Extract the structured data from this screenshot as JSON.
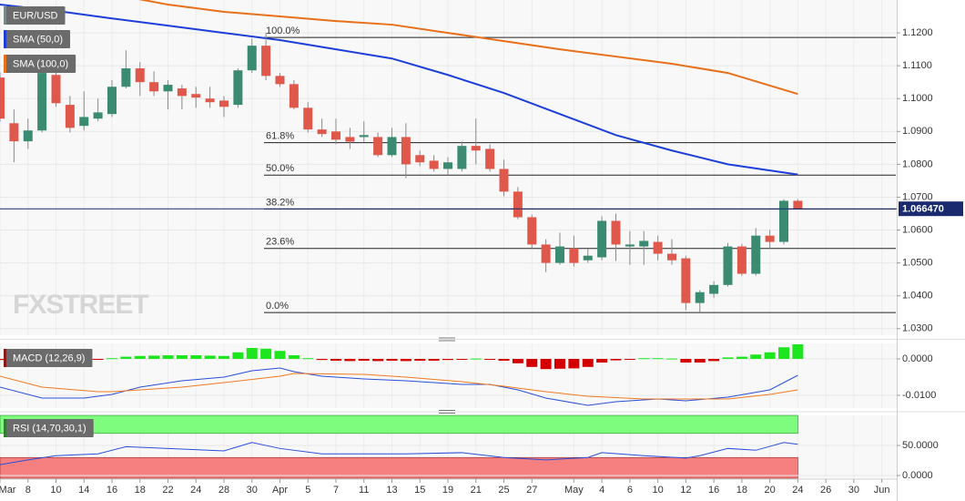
{
  "chart_data": [
    {
      "type": "candlestick",
      "name": "EUR/USD",
      "name_color": "#7a8a8a",
      "x": [
        0,
        1,
        2,
        3,
        4,
        5,
        6,
        7,
        8,
        9,
        10,
        11,
        12,
        13,
        14,
        15,
        16,
        17,
        18,
        19,
        20,
        21,
        22,
        23,
        24,
        25,
        26,
        27,
        28,
        29,
        30,
        31,
        32,
        33,
        34,
        35,
        36,
        37,
        38,
        39,
        40,
        41,
        42,
        43,
        44,
        45,
        46,
        47,
        48,
        49,
        50,
        51,
        52,
        53,
        54,
        55,
        56,
        57
      ],
      "open": [
        1.1064,
        1.0925,
        1.087,
        1.0903,
        1.1072,
        1.0981,
        1.0917,
        1.0939,
        1.0953,
        1.1036,
        1.1092,
        1.105,
        1.1022,
        1.1031,
        1.1014,
        1.1,
        1.0994,
        1.0981,
        1.1086,
        1.1161,
        1.1069,
        1.1044,
        1.0972,
        1.0906,
        1.09,
        1.0883,
        1.0883,
        1.0883,
        1.0828,
        1.0883,
        1.0828,
        1.0811,
        1.0786,
        1.0786,
        1.0856,
        1.0847,
        1.0786,
        1.0717,
        1.0639,
        1.0556,
        1.05,
        1.0544,
        1.0508,
        1.0517,
        1.0628,
        1.055,
        1.055,
        1.0564,
        1.0528,
        1.0514,
        1.0378,
        1.0406,
        1.0433,
        1.055,
        1.0467,
        1.0583,
        1.0564,
        1.0689
      ],
      "high": [
        1.108,
        1.0967,
        1.0939,
        1.1092,
        1.11,
        1.1008,
        1.1022,
        1.1,
        1.1056,
        1.1147,
        1.1111,
        1.1083,
        1.1056,
        1.1042,
        1.1036,
        1.1036,
        1.1008,
        1.1092,
        1.1183,
        1.12,
        1.1078,
        1.1056,
        1.0989,
        1.0939,
        1.0939,
        1.0911,
        1.0931,
        1.0897,
        1.0911,
        1.0925,
        1.0842,
        1.0828,
        1.0822,
        1.0869,
        1.0939,
        1.0861,
        1.0814,
        1.0731,
        1.0647,
        1.0572,
        1.0592,
        1.0583,
        1.0542,
        1.0642,
        1.065,
        1.0597,
        1.0597,
        1.0583,
        1.0572,
        1.0522,
        1.0417,
        1.0444,
        1.0561,
        1.0558,
        1.0606,
        1.06,
        1.0694,
        1.0694
      ],
      "low": [
        1.093,
        1.0806,
        1.0847,
        1.0897,
        1.0975,
        1.0897,
        1.0903,
        1.0931,
        1.0944,
        1.1031,
        1.1008,
        1.1008,
        1.0967,
        1.0967,
        1.0972,
        1.0972,
        1.0944,
        1.0972,
        1.1078,
        1.1056,
        1.1036,
        1.0967,
        1.0897,
        1.0883,
        1.0861,
        1.0847,
        1.0869,
        1.0822,
        1.0822,
        1.0758,
        1.0794,
        1.0778,
        1.0767,
        1.0778,
        1.08,
        1.0778,
        1.0703,
        1.0633,
        1.0544,
        1.0472,
        1.0494,
        1.0489,
        1.05,
        1.0508,
        1.0506,
        1.0494,
        1.0494,
        1.0508,
        1.0494,
        1.0356,
        1.035,
        1.0394,
        1.0428,
        1.0461,
        1.0461,
        1.0544,
        1.0556,
        1.0664
      ],
      "close": [
        1.0939,
        1.087,
        1.0903,
        1.1078,
        1.0986,
        1.0911,
        1.0944,
        1.0958,
        1.1036,
        1.1092,
        1.105,
        1.1022,
        1.1042,
        1.1008,
        1.1003,
        1.0989,
        1.0975,
        1.1086,
        1.1161,
        1.1069,
        1.1044,
        1.0972,
        1.0906,
        1.0892,
        1.0875,
        1.0869,
        1.0889,
        1.0828,
        1.0883,
        1.08,
        1.0806,
        1.0786,
        1.0806,
        1.0856,
        1.0842,
        1.0786,
        1.0717,
        1.0639,
        1.0556,
        1.05,
        1.055,
        1.05,
        1.0522,
        1.0628,
        1.0556,
        1.0556,
        1.0567,
        1.0528,
        1.0508,
        1.0378,
        1.0411,
        1.0433,
        1.055,
        1.0467,
        1.0583,
        1.0564,
        1.0689,
        1.0665
      ],
      "up_color": "#3b8a72",
      "down_color": "#e0574c",
      "series": [
        {
          "name": "SMA (50,0)",
          "color": "#1d3fd8",
          "x": [
            0,
            4,
            8,
            12,
            16,
            20,
            24,
            28,
            32,
            36,
            40,
            44,
            48,
            52,
            57
          ],
          "values": [
            1.1286,
            1.1267,
            1.1244,
            1.1222,
            1.12,
            1.1178,
            1.115,
            1.1122,
            1.1072,
            1.1017,
            1.0953,
            1.0889,
            1.0842,
            1.08,
            1.0769
          ]
        },
        {
          "name": "SMA (100,0)",
          "color": "#e8701a",
          "x": [
            9,
            12,
            16,
            20,
            24,
            28,
            32,
            36,
            40,
            44,
            48,
            52,
            57
          ],
          "values": [
            1.131,
            1.1286,
            1.1264,
            1.125,
            1.1236,
            1.1225,
            1.12,
            1.1175,
            1.115,
            1.1128,
            1.1106,
            1.1078,
            1.1014
          ]
        }
      ],
      "fib_levels": {
        "labels": [
          "100.0%",
          "61.8%",
          "50.0%",
          "38.2%",
          "23.6%",
          "0.0%"
        ],
        "values": [
          1.1186,
          1.0866,
          1.0767,
          1.0664,
          1.0544,
          1.0349
        ]
      },
      "price_line": {
        "value": 1.06647,
        "label": "1.066470",
        "color": "#1b2a6e"
      },
      "watermark": "FXSTREET",
      "xlim": [
        0,
        64
      ],
      "ylim": [
        1.028,
        1.13
      ],
      "yticks": [
        {
          "value": 1.12,
          "label": "1.1200"
        },
        {
          "value": 1.11,
          "label": "1.1100"
        },
        {
          "value": 1.1,
          "label": "1.1000"
        },
        {
          "value": 1.09,
          "label": "1.0900"
        },
        {
          "value": 1.08,
          "label": "1.0800"
        },
        {
          "value": 1.07,
          "label": "1.0700"
        },
        {
          "value": 1.06,
          "label": "1.0600"
        },
        {
          "value": 1.05,
          "label": "1.0500"
        },
        {
          "value": 1.04,
          "label": "1.0400"
        },
        {
          "value": 1.03,
          "label": "1.0300"
        }
      ],
      "grid": true
    },
    {
      "type": "combo",
      "name": "MACD (12,26,9)",
      "name_color": "#8b1a1a",
      "x": [
        0,
        1,
        2,
        3,
        4,
        5,
        6,
        7,
        8,
        9,
        10,
        11,
        12,
        13,
        14,
        15,
        16,
        17,
        18,
        19,
        20,
        21,
        22,
        23,
        24,
        25,
        26,
        27,
        28,
        29,
        30,
        31,
        32,
        33,
        34,
        35,
        36,
        37,
        38,
        39,
        40,
        41,
        42,
        43,
        44,
        45,
        46,
        47,
        48,
        49,
        50,
        51,
        52,
        53,
        54,
        55,
        56,
        57
      ],
      "histogram": [
        -0.0003,
        -0.0004,
        -0.0004,
        -0.0003,
        -0.0002,
        -0.0002,
        -0.0003,
        -0.0002,
        0.0002,
        0.0006,
        0.0008,
        0.0009,
        0.001,
        0.001,
        0.001,
        0.0009,
        0.0008,
        0.0018,
        0.003,
        0.0028,
        0.0022,
        0.001,
        0.0002,
        -0.0003,
        -0.0005,
        -0.0006,
        -0.0005,
        -0.0006,
        -0.0005,
        -0.0006,
        -0.0005,
        -0.0005,
        -0.0003,
        -0.0001,
        0.0001,
        -0.0002,
        -0.0005,
        -0.0012,
        -0.0022,
        -0.0028,
        -0.0027,
        -0.0026,
        -0.0022,
        -0.001,
        -0.0004,
        -0.0001,
        0.0002,
        0.0002,
        0.0001,
        -0.001,
        -0.001,
        -0.0006,
        0.0004,
        0.0006,
        0.0012,
        0.0018,
        0.0032,
        0.004
      ],
      "up_color": "#1ee61e",
      "down_color": "#d40000",
      "lines": [
        {
          "color": "#2a4fd8",
          "x": [
            0,
            3,
            6,
            8,
            10,
            13,
            16,
            18,
            20,
            21,
            23,
            26,
            29,
            33,
            35,
            37,
            39,
            42,
            44,
            47,
            49,
            52,
            55,
            57
          ],
          "values": [
            -0.00775,
            -0.01075,
            -0.01075,
            -0.00975,
            -0.00775,
            -0.006,
            -0.005,
            -0.00325,
            -0.0025,
            -0.0035,
            -0.00475,
            -0.0055,
            -0.006,
            -0.007,
            -0.007,
            -0.0085,
            -0.01075,
            -0.01275,
            -0.01175,
            -0.011,
            -0.0115,
            -0.0105,
            -0.0085,
            -0.0045
          ]
        },
        {
          "color": "#f07a20",
          "x": [
            0,
            3,
            7,
            8,
            13,
            16,
            20,
            21,
            26,
            29,
            33,
            36,
            39,
            42,
            46,
            49,
            52,
            55,
            57
          ],
          "values": [
            -0.00475,
            -0.00775,
            -0.009,
            -0.009,
            -0.00775,
            -0.0065,
            -0.00475,
            -0.004,
            -0.00425,
            -0.005,
            -0.00625,
            -0.0075,
            -0.009,
            -0.01025,
            -0.011,
            -0.011,
            -0.011,
            -0.00975,
            -0.0085
          ]
        }
      ],
      "xlim": [
        0,
        64
      ],
      "ylim": [
        -0.0135,
        0.00425
      ],
      "yticks": [
        {
          "value": 0,
          "label": "0.0000"
        },
        {
          "value": -0.01,
          "label": "-0.0100"
        }
      ],
      "grid": true
    },
    {
      "type": "line",
      "name": "RSI (14,70,30,1)",
      "name_color": "#2e7d32",
      "x": [
        0,
        2,
        4,
        7,
        9,
        13,
        16,
        18,
        20,
        23,
        26,
        29,
        33,
        36,
        39,
        42,
        43,
        46,
        49,
        50,
        52,
        54,
        56,
        57
      ],
      "values": [
        18,
        26,
        33,
        36,
        48,
        44,
        41,
        55,
        45,
        36,
        36,
        36,
        38,
        30,
        26,
        30,
        38,
        33,
        29,
        33,
        45,
        42,
        55,
        52
      ],
      "color": "#2a4fd8",
      "overbought": 70,
      "oversold": 30,
      "overbought_color": "#7dfc7d",
      "oversold_color": "#f67f7f",
      "xlim": [
        0,
        64
      ],
      "ylim": [
        -4.5,
        100
      ],
      "yticks": [
        {
          "value": 50,
          "label": "50.0000"
        },
        {
          "value": 0,
          "label": "0.0000"
        }
      ],
      "xticks": [
        {
          "value": 0,
          "label": "Mar"
        },
        {
          "value": 2,
          "label": "8"
        },
        {
          "value": 4,
          "label": "10"
        },
        {
          "value": 6,
          "label": "14"
        },
        {
          "value": 8,
          "label": "16"
        },
        {
          "value": 10,
          "label": "18"
        },
        {
          "value": 12,
          "label": "22"
        },
        {
          "value": 14,
          "label": "24"
        },
        {
          "value": 16,
          "label": "28"
        },
        {
          "value": 18,
          "label": "30"
        },
        {
          "value": 20,
          "label": "Apr"
        },
        {
          "value": 22,
          "label": "5"
        },
        {
          "value": 24,
          "label": "7"
        },
        {
          "value": 26,
          "label": "11"
        },
        {
          "value": 28,
          "label": "13"
        },
        {
          "value": 30,
          "label": "15"
        },
        {
          "value": 32,
          "label": "19"
        },
        {
          "value": 34,
          "label": "21"
        },
        {
          "value": 36,
          "label": "25"
        },
        {
          "value": 38,
          "label": "27"
        },
        {
          "value": 41,
          "label": "May"
        },
        {
          "value": 43,
          "label": "4"
        },
        {
          "value": 45,
          "label": "6"
        },
        {
          "value": 47,
          "label": "10"
        },
        {
          "value": 49,
          "label": "12"
        },
        {
          "value": 51,
          "label": "16"
        },
        {
          "value": 53,
          "label": "18"
        },
        {
          "value": 55,
          "label": "20"
        },
        {
          "value": 57,
          "label": "24"
        },
        {
          "value": 59,
          "label": "26"
        },
        {
          "value": 61,
          "label": "30"
        },
        {
          "value": 63,
          "label": "Jun"
        }
      ],
      "grid": true
    }
  ]
}
